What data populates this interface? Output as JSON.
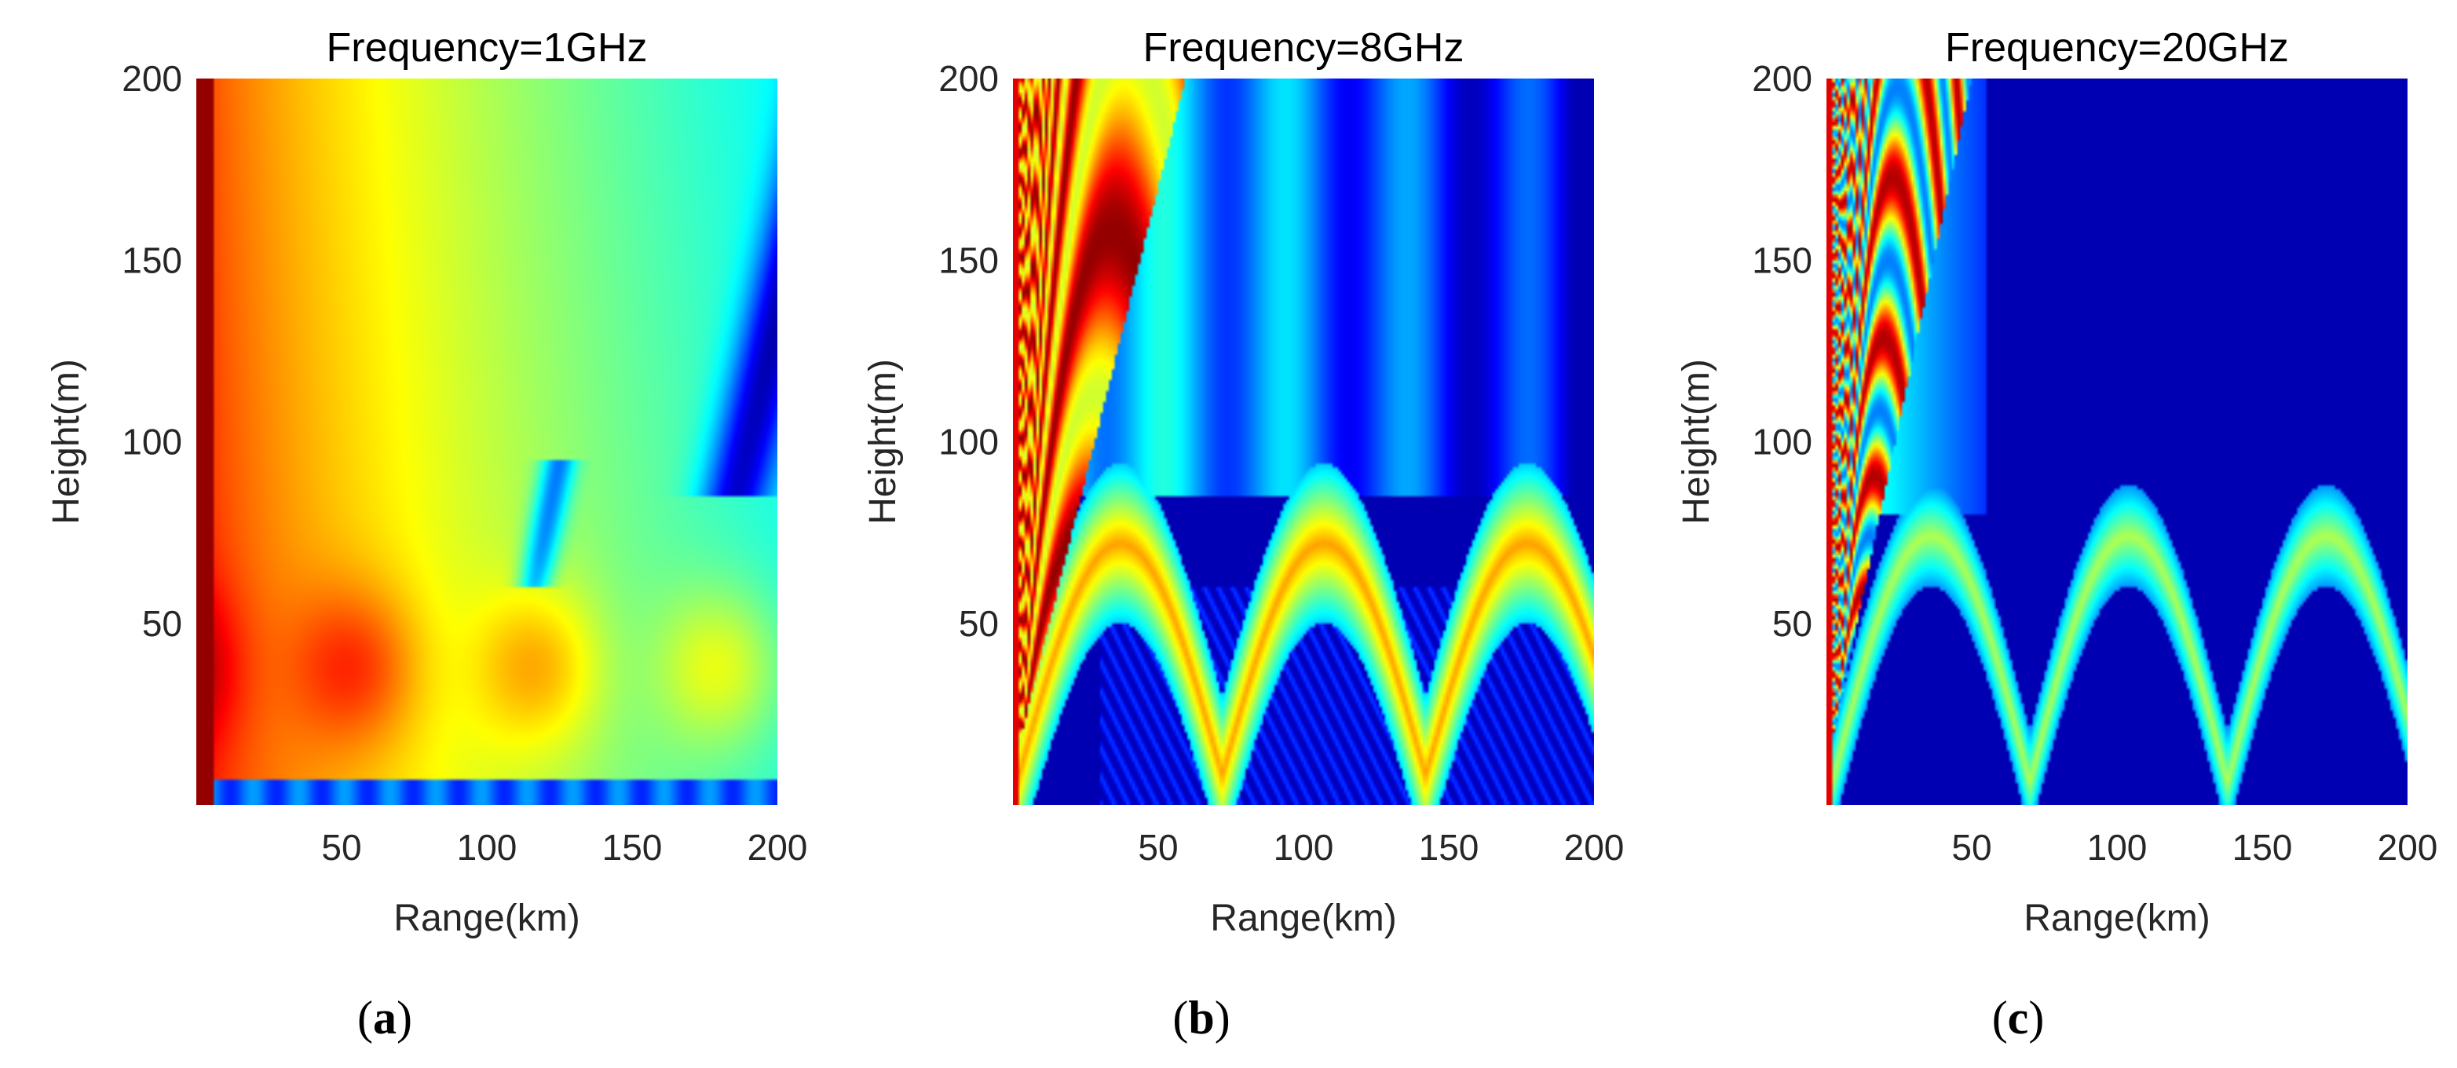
{
  "chart_data": [
    {
      "type": "heatmap",
      "panel": "a",
      "title": "Frequency=1GHz",
      "xlabel": "Range(km)",
      "ylabel": "Height(m)",
      "xlim": [
        0,
        200
      ],
      "ylim": [
        0,
        200
      ],
      "xticks": [
        50,
        100,
        150,
        200
      ],
      "yticks": [
        50,
        100,
        150,
        200
      ],
      "colormap": "jet",
      "frequency_ghz": 1
    },
    {
      "type": "heatmap",
      "panel": "b",
      "title": "Frequency=8GHz",
      "xlabel": "Range(km)",
      "ylabel": "Height(m)",
      "xlim": [
        0,
        200
      ],
      "ylim": [
        0,
        200
      ],
      "xticks": [
        50,
        100,
        150,
        200
      ],
      "yticks": [
        50,
        100,
        150,
        200
      ],
      "colormap": "jet",
      "frequency_ghz": 8
    },
    {
      "type": "heatmap",
      "panel": "c",
      "title": "Frequency=20GHz",
      "xlabel": "Range(km)",
      "ylabel": "Height(m)",
      "xlim": [
        0,
        200
      ],
      "ylim": [
        0,
        200
      ],
      "xticks": [
        50,
        100,
        150,
        200
      ],
      "yticks": [
        50,
        100,
        150,
        200
      ],
      "colormap": "jet",
      "frequency_ghz": 20
    }
  ],
  "panel_labels": [
    {
      "letter": "a"
    },
    {
      "letter": "b"
    },
    {
      "letter": "c"
    }
  ]
}
